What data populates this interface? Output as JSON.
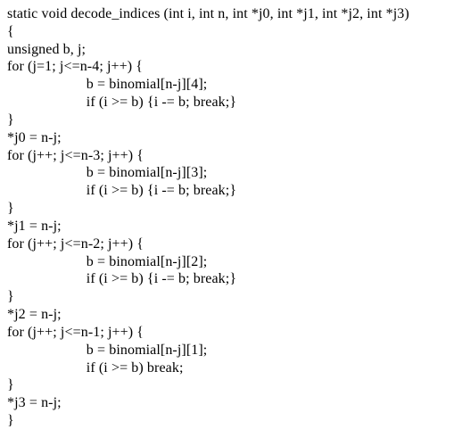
{
  "code": {
    "font_family": "Times New Roman",
    "font_size_pt": 12,
    "text_color": "#000000",
    "background_color": "#ffffff",
    "lines": [
      "static void decode_indices (int i, int n, int *j0, int *j1, int *j2, int *j3)",
      "{",
      "unsigned b, j;",
      "for (j=1; j<=n-4; j++) {",
      "        b = binomial[n-j][4];",
      "        if (i >= b) {i -= b; break;}",
      "}",
      "*j0 = n-j;",
      "for (j++; j<=n-3; j++) {",
      "        b = binomial[n-j][3];",
      "        if (i >= b) {i -= b; break;}",
      "}",
      "*j1 = n-j;",
      "for (j++; j<=n-2; j++) {",
      "        b = binomial[n-j][2];",
      "        if (i >= b) {i -= b; break;}",
      "}",
      "*j2 = n-j;",
      "for (j++; j<=n-1; j++) {",
      "        b = binomial[n-j][1];",
      "        if (i >= b) break;",
      "}",
      "*j3 = n-j;",
      "}"
    ]
  }
}
